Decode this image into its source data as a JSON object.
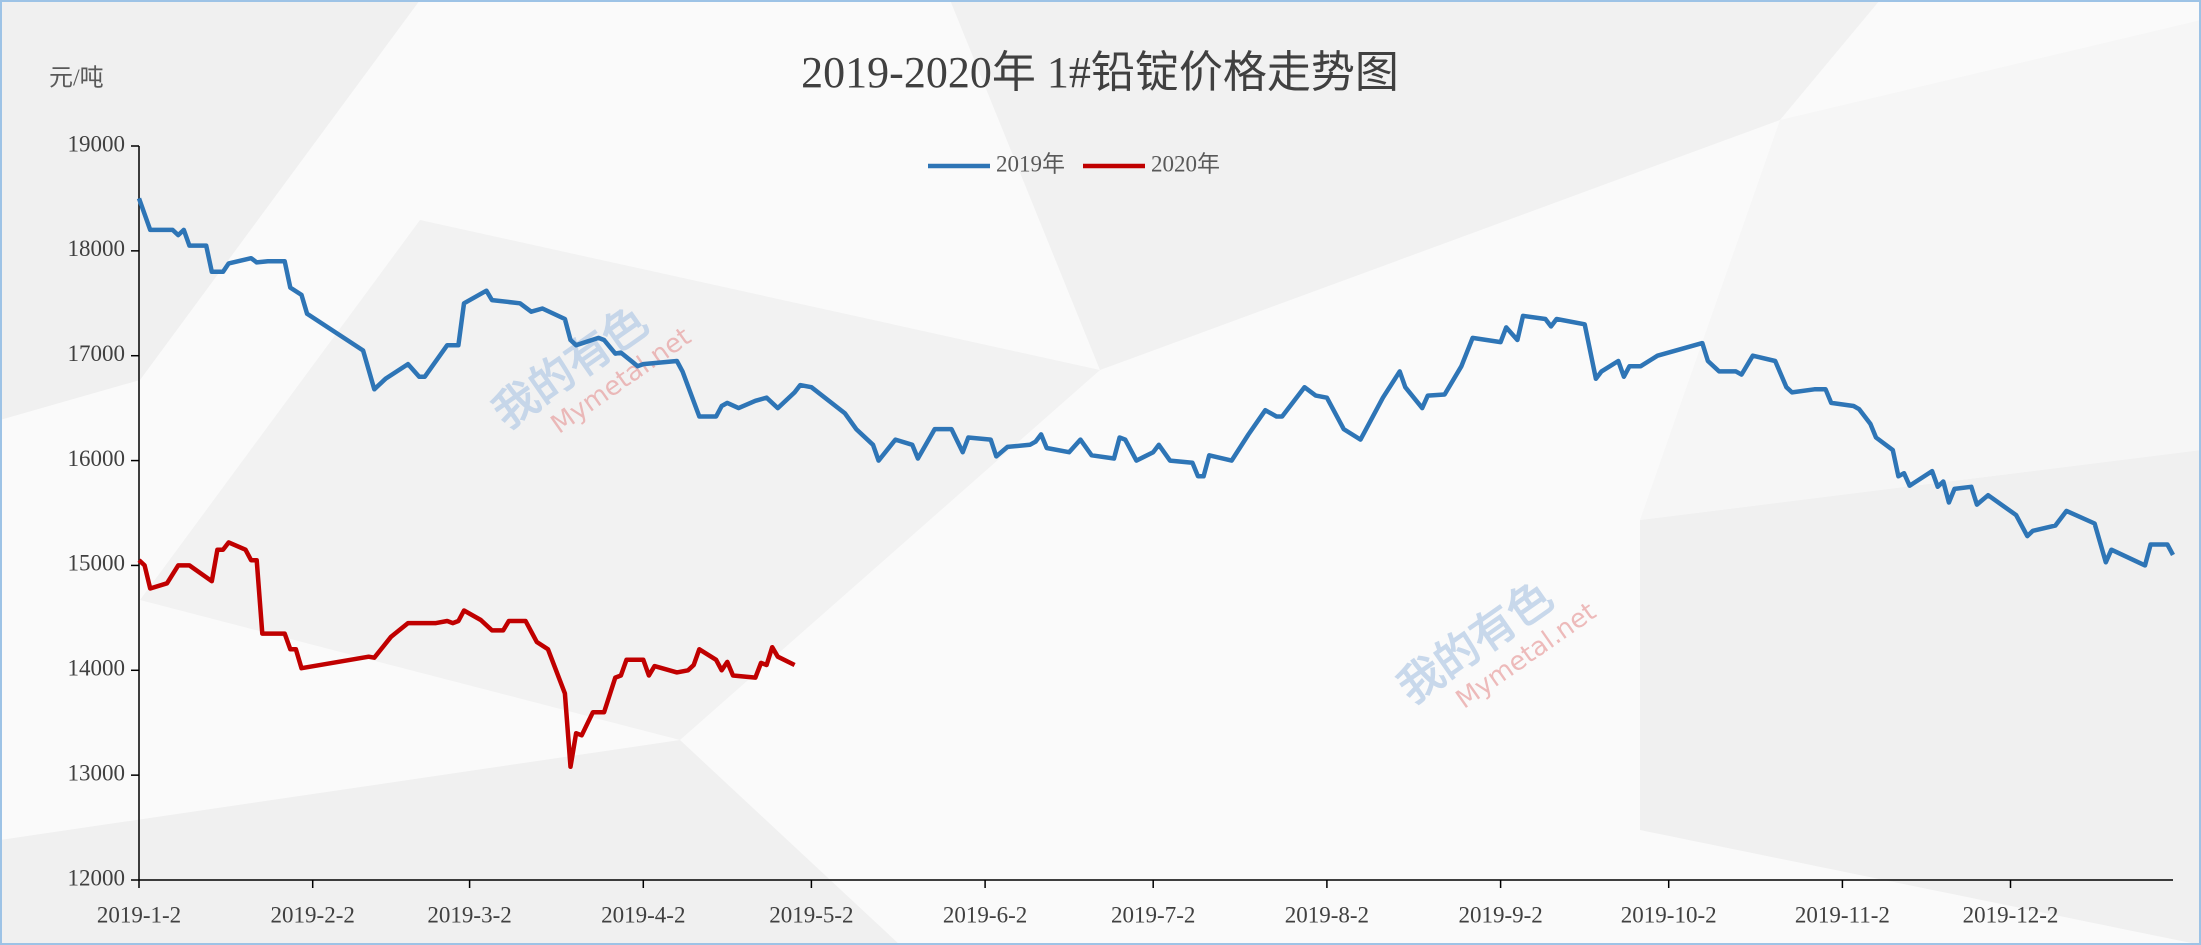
{
  "chart_data": {
    "type": "line",
    "title": "2019-2020年 1#铅锭价格走势图",
    "y_label": "元/吨",
    "xlim": [
      "2019-1-2",
      "2019-12-31"
    ],
    "xticks": [
      "2019-1-2",
      "2019-2-2",
      "2019-3-2",
      "2019-4-2",
      "2019-5-2",
      "2019-6-2",
      "2019-7-2",
      "2019-8-2",
      "2019-9-2",
      "2019-10-2",
      "2019-11-2",
      "2019-12-2"
    ],
    "ylim": [
      12000,
      19000
    ],
    "yticks": [
      12000,
      13000,
      14000,
      15000,
      16000,
      17000,
      18000,
      19000
    ],
    "grid": false,
    "legend": "top",
    "series": [
      {
        "name": "2019年",
        "color": "#2e75b6",
        "x": [
          "2019-1-2",
          "2019-1-4",
          "2019-1-8",
          "2019-1-9",
          "2019-1-10",
          "2019-1-11",
          "2019-1-14",
          "2019-1-15",
          "2019-1-17",
          "2019-1-18",
          "2019-1-22",
          "2019-1-23",
          "2019-1-25",
          "2019-1-28",
          "2019-1-29",
          "2019-1-31",
          "2019-2-1",
          "2019-2-11",
          "2019-2-13",
          "2019-2-15",
          "2019-2-19",
          "2019-2-21",
          "2019-2-22",
          "2019-2-26",
          "2019-2-28",
          "2019-3-1",
          "2019-3-5",
          "2019-3-6",
          "2019-3-11",
          "2019-3-13",
          "2019-3-15",
          "2019-3-19",
          "2019-3-20",
          "2019-3-21",
          "2019-3-25",
          "2019-3-26",
          "2019-3-28",
          "2019-3-29",
          "2019-4-1",
          "2019-4-2",
          "2019-4-8",
          "2019-4-9",
          "2019-4-12",
          "2019-4-15",
          "2019-4-16",
          "2019-4-17",
          "2019-4-19",
          "2019-4-22",
          "2019-4-24",
          "2019-4-26",
          "2019-4-29",
          "2019-4-30",
          "2019-5-2",
          "2019-5-8",
          "2019-5-10",
          "2019-5-13",
          "2019-5-14",
          "2019-5-17",
          "2019-5-20",
          "2019-5-21",
          "2019-5-24",
          "2019-5-27",
          "2019-5-29",
          "2019-5-30",
          "2019-6-3",
          "2019-6-4",
          "2019-6-6",
          "2019-6-10",
          "2019-6-11",
          "2019-6-12",
          "2019-6-13",
          "2019-6-17",
          "2019-6-19",
          "2019-6-21",
          "2019-6-25",
          "2019-6-26",
          "2019-6-27",
          "2019-6-29",
          "2019-7-2",
          "2019-7-3",
          "2019-7-5",
          "2019-7-9",
          "2019-7-10",
          "2019-7-11",
          "2019-7-12",
          "2019-7-16",
          "2019-7-19",
          "2019-7-22",
          "2019-7-24",
          "2019-7-25",
          "2019-7-29",
          "2019-7-31",
          "2019-8-2",
          "2019-8-5",
          "2019-8-8",
          "2019-8-12",
          "2019-8-15",
          "2019-8-16",
          "2019-8-19",
          "2019-8-20",
          "2019-8-23",
          "2019-8-26",
          "2019-8-28",
          "2019-9-2",
          "2019-9-3",
          "2019-9-5",
          "2019-9-6",
          "2019-9-10",
          "2019-9-11",
          "2019-9-12",
          "2019-9-17",
          "2019-9-19",
          "2019-9-20",
          "2019-9-23",
          "2019-9-24",
          "2019-9-25",
          "2019-9-27",
          "2019-9-30",
          "2019-10-8",
          "2019-10-9",
          "2019-10-11",
          "2019-10-14",
          "2019-10-15",
          "2019-10-17",
          "2019-10-21",
          "2019-10-23",
          "2019-10-24",
          "2019-10-28",
          "2019-10-30",
          "2019-10-31",
          "2019-11-4",
          "2019-11-5",
          "2019-11-7",
          "2019-11-8",
          "2019-11-11",
          "2019-11-12",
          "2019-11-13",
          "2019-11-14",
          "2019-11-18",
          "2019-11-19",
          "2019-11-20",
          "2019-11-21",
          "2019-11-22",
          "2019-11-25",
          "2019-11-26",
          "2019-11-28",
          "2019-12-3",
          "2019-12-5",
          "2019-12-6",
          "2019-12-10",
          "2019-12-12",
          "2019-12-17",
          "2019-12-19",
          "2019-12-20",
          "2019-12-24",
          "2019-12-26",
          "2019-12-27",
          "2019-12-30",
          "2019-12-31"
        ],
        "values": [
          18500,
          18200,
          18200,
          18150,
          18200,
          18050,
          18050,
          17800,
          17800,
          17880,
          17930,
          17890,
          17900,
          17900,
          17650,
          17580,
          17400,
          17050,
          16680,
          16780,
          16920,
          16800,
          16800,
          17100,
          17100,
          17500,
          17620,
          17530,
          17500,
          17420,
          17450,
          17350,
          17150,
          17100,
          17170,
          17150,
          17020,
          17030,
          16900,
          16920,
          16950,
          16850,
          16420,
          16420,
          16520,
          16550,
          16500,
          16570,
          16600,
          16500,
          16650,
          16720,
          16700,
          16450,
          16300,
          16150,
          16000,
          16200,
          16150,
          16020,
          16300,
          16300,
          16080,
          16220,
          16200,
          16040,
          16130,
          16150,
          16180,
          16250,
          16120,
          16080,
          16200,
          16050,
          16020,
          16220,
          16200,
          16000,
          16080,
          16150,
          16000,
          15980,
          15850,
          15850,
          16050,
          16000,
          16250,
          16480,
          16420,
          16420,
          16700,
          16620,
          16600,
          16300,
          16200,
          16600,
          16850,
          16700,
          16500,
          16620,
          16630,
          16900,
          17170,
          17130,
          17270,
          17150,
          17380,
          17350,
          17280,
          17350,
          17300,
          16780,
          16850,
          16950,
          16800,
          16900,
          16900,
          17000,
          17120,
          16950,
          16850,
          16850,
          16820,
          17000,
          16950,
          16700,
          16650,
          16680,
          16680,
          16550,
          16520,
          16490,
          16350,
          16220,
          16100,
          15850,
          15880,
          15760,
          15900,
          15750,
          15800,
          15600,
          15730,
          15750,
          15580,
          15670,
          15480,
          15280,
          15330,
          15380,
          15520,
          15400,
          15030,
          15150,
          15050,
          15000,
          15200,
          15200,
          15100
        ]
      },
      {
        "name": "2020年",
        "color": "#c00000",
        "x": [
          "2019-1-2",
          "2019-1-3",
          "2019-1-4",
          "2019-1-7",
          "2019-1-9",
          "2019-1-11",
          "2019-1-15",
          "2019-1-16",
          "2019-1-17",
          "2019-1-18",
          "2019-1-21",
          "2019-1-22",
          "2019-1-23",
          "2019-1-24",
          "2019-1-28",
          "2019-1-29",
          "2019-1-30",
          "2019-1-31",
          "2019-2-12",
          "2019-2-13",
          "2019-2-16",
          "2019-2-19",
          "2019-2-24",
          "2019-2-26",
          "2019-2-27",
          "2019-2-28",
          "2019-3-1",
          "2019-3-4",
          "2019-3-6",
          "2019-3-8",
          "2019-3-9",
          "2019-3-12",
          "2019-3-14",
          "2019-3-16",
          "2019-3-19",
          "2019-3-20",
          "2019-3-21",
          "2019-3-22",
          "2019-3-24",
          "2019-3-26",
          "2019-3-28",
          "2019-3-29",
          "2019-3-30",
          "2019-4-2",
          "2019-4-3",
          "2019-4-4",
          "2019-4-8",
          "2019-4-10",
          "2019-4-11",
          "2019-4-12",
          "2019-4-15",
          "2019-4-16",
          "2019-4-17",
          "2019-4-18",
          "2019-4-22",
          "2019-4-23",
          "2019-4-24",
          "2019-4-25",
          "2019-4-26",
          "2019-4-29"
        ],
        "values": [
          15050,
          15000,
          14780,
          14830,
          15000,
          15000,
          14850,
          15150,
          15150,
          15220,
          15150,
          15050,
          15050,
          14350,
          14350,
          14200,
          14200,
          14020,
          14130,
          14120,
          14320,
          14450,
          14450,
          14470,
          14450,
          14470,
          14570,
          14480,
          14380,
          14380,
          14470,
          14470,
          14270,
          14200,
          13780,
          13080,
          13400,
          13380,
          13600,
          13600,
          13930,
          13950,
          14100,
          14100,
          13950,
          14040,
          13980,
          14000,
          14050,
          14200,
          14100,
          14000,
          14080,
          13950,
          13930,
          14070,
          14050,
          14220,
          14130,
          14050
        ]
      }
    ]
  },
  "watermark": [
    "我的有色",
    "Mymetal.net"
  ]
}
